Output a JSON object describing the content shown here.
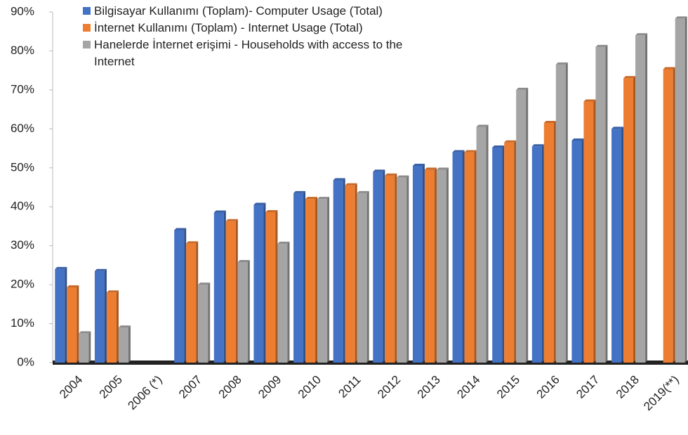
{
  "chart_data": {
    "type": "bar",
    "categories": [
      "2004",
      "2005",
      "2006 (*)",
      "2007",
      "2008",
      "2009",
      "2010",
      "2011",
      "2012",
      "2013",
      "2014",
      "2015",
      "2016",
      "2017",
      "2018",
      "2019(**)"
    ],
    "series": [
      {
        "name": "Bilgisayar Kullanımı (Toplam)- Computer Usage (Total)",
        "color": "#4472c4",
        "values": [
          24,
          23.5,
          null,
          34,
          38.5,
          40.5,
          43.5,
          46.8,
          49,
          50.5,
          54,
          55.2,
          55.5,
          57,
          60,
          null
        ]
      },
      {
        "name": "İnternet Kullanımı (Toplam)  - Internet Usage (Total)",
        "color": "#ed7d31",
        "values": [
          19.3,
          18,
          null,
          30.6,
          36.3,
          38.6,
          42,
          45.5,
          48,
          49.5,
          54,
          56.5,
          61.5,
          67,
          73,
          75.3
        ]
      },
      {
        "name": "Hanelerde İnternet erişimi - Households with access to the Internet",
        "color": "#a5a5a5",
        "values": [
          7.5,
          9,
          null,
          20,
          25.8,
          30.5,
          42,
          43.5,
          47.5,
          49.5,
          60.5,
          70,
          76.5,
          81,
          84,
          88.3
        ]
      }
    ],
    "ylim": [
      0,
      90
    ],
    "yticks": [
      {
        "value": 0,
        "label": "0%"
      },
      {
        "value": 10,
        "label": "10%"
      },
      {
        "value": 20,
        "label": "20%"
      },
      {
        "value": 30,
        "label": "30%"
      },
      {
        "value": 40,
        "label": "40%"
      },
      {
        "value": 50,
        "label": "50%"
      },
      {
        "value": 60,
        "label": "60%"
      },
      {
        "value": 70,
        "label": "70%"
      },
      {
        "value": 80,
        "label": "80%"
      },
      {
        "value": 90,
        "label": "90%"
      }
    ],
    "legend": "top-left"
  }
}
